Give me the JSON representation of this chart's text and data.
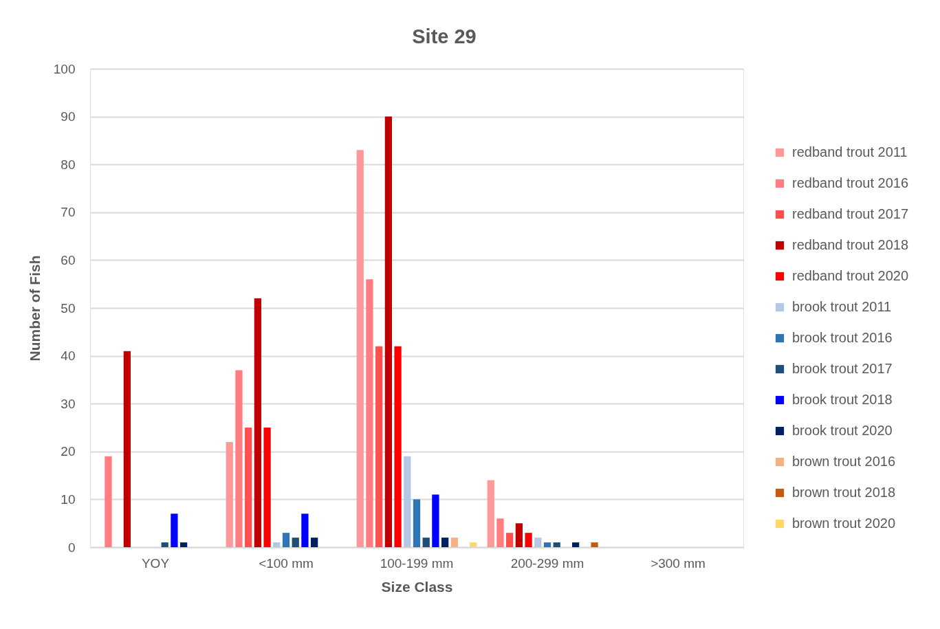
{
  "chart_data": {
    "type": "bar",
    "title": "Site 29",
    "xlabel": "Size Class",
    "ylabel": "Number of Fish",
    "categories": [
      "YOY",
      "<100 mm",
      "100-199 mm",
      "200-299 mm",
      ">300 mm"
    ],
    "series": [
      {
        "name": "redband trout 2011",
        "color": "#ff9999",
        "values": [
          null,
          22,
          83,
          14,
          null
        ]
      },
      {
        "name": "redband trout 2016",
        "color": "#ff7c80",
        "values": [
          19,
          37,
          56,
          6,
          null
        ]
      },
      {
        "name": "redband trout 2017",
        "color": "#ff5050",
        "values": [
          null,
          25,
          42,
          3,
          null
        ]
      },
      {
        "name": "redband trout 2018",
        "color": "#c00000",
        "values": [
          41,
          52,
          90,
          5,
          null
        ]
      },
      {
        "name": "redband trout 2020",
        "color": "#ff0000",
        "values": [
          null,
          25,
          42,
          3,
          null
        ]
      },
      {
        "name": "brook trout 2011",
        "color": "#b4c7e7",
        "values": [
          null,
          1,
          19,
          2,
          null
        ]
      },
      {
        "name": "brook trout 2016",
        "color": "#2e75b6",
        "values": [
          null,
          3,
          10,
          1,
          null
        ]
      },
      {
        "name": "brook trout 2017",
        "color": "#1f4e79",
        "values": [
          1,
          2,
          2,
          1,
          null
        ]
      },
      {
        "name": "brook trout 2018",
        "color": "#0000ff",
        "values": [
          7,
          7,
          11,
          null,
          null
        ]
      },
      {
        "name": "brook trout 2020",
        "color": "#002060",
        "values": [
          1,
          2,
          2,
          1,
          null
        ]
      },
      {
        "name": "brown trout 2016",
        "color": "#f4b183",
        "values": [
          null,
          null,
          2,
          null,
          null
        ]
      },
      {
        "name": "brown trout 2018",
        "color": "#c55a11",
        "values": [
          null,
          null,
          null,
          1,
          null
        ]
      },
      {
        "name": "brown trout 2020",
        "color": "#ffd966",
        "values": [
          null,
          null,
          1,
          null,
          null
        ]
      }
    ],
    "ylim": [
      0,
      100
    ],
    "yticks": [
      0,
      10,
      20,
      30,
      40,
      50,
      60,
      70,
      80,
      90,
      100
    ],
    "grid": "y",
    "legend": "right"
  }
}
